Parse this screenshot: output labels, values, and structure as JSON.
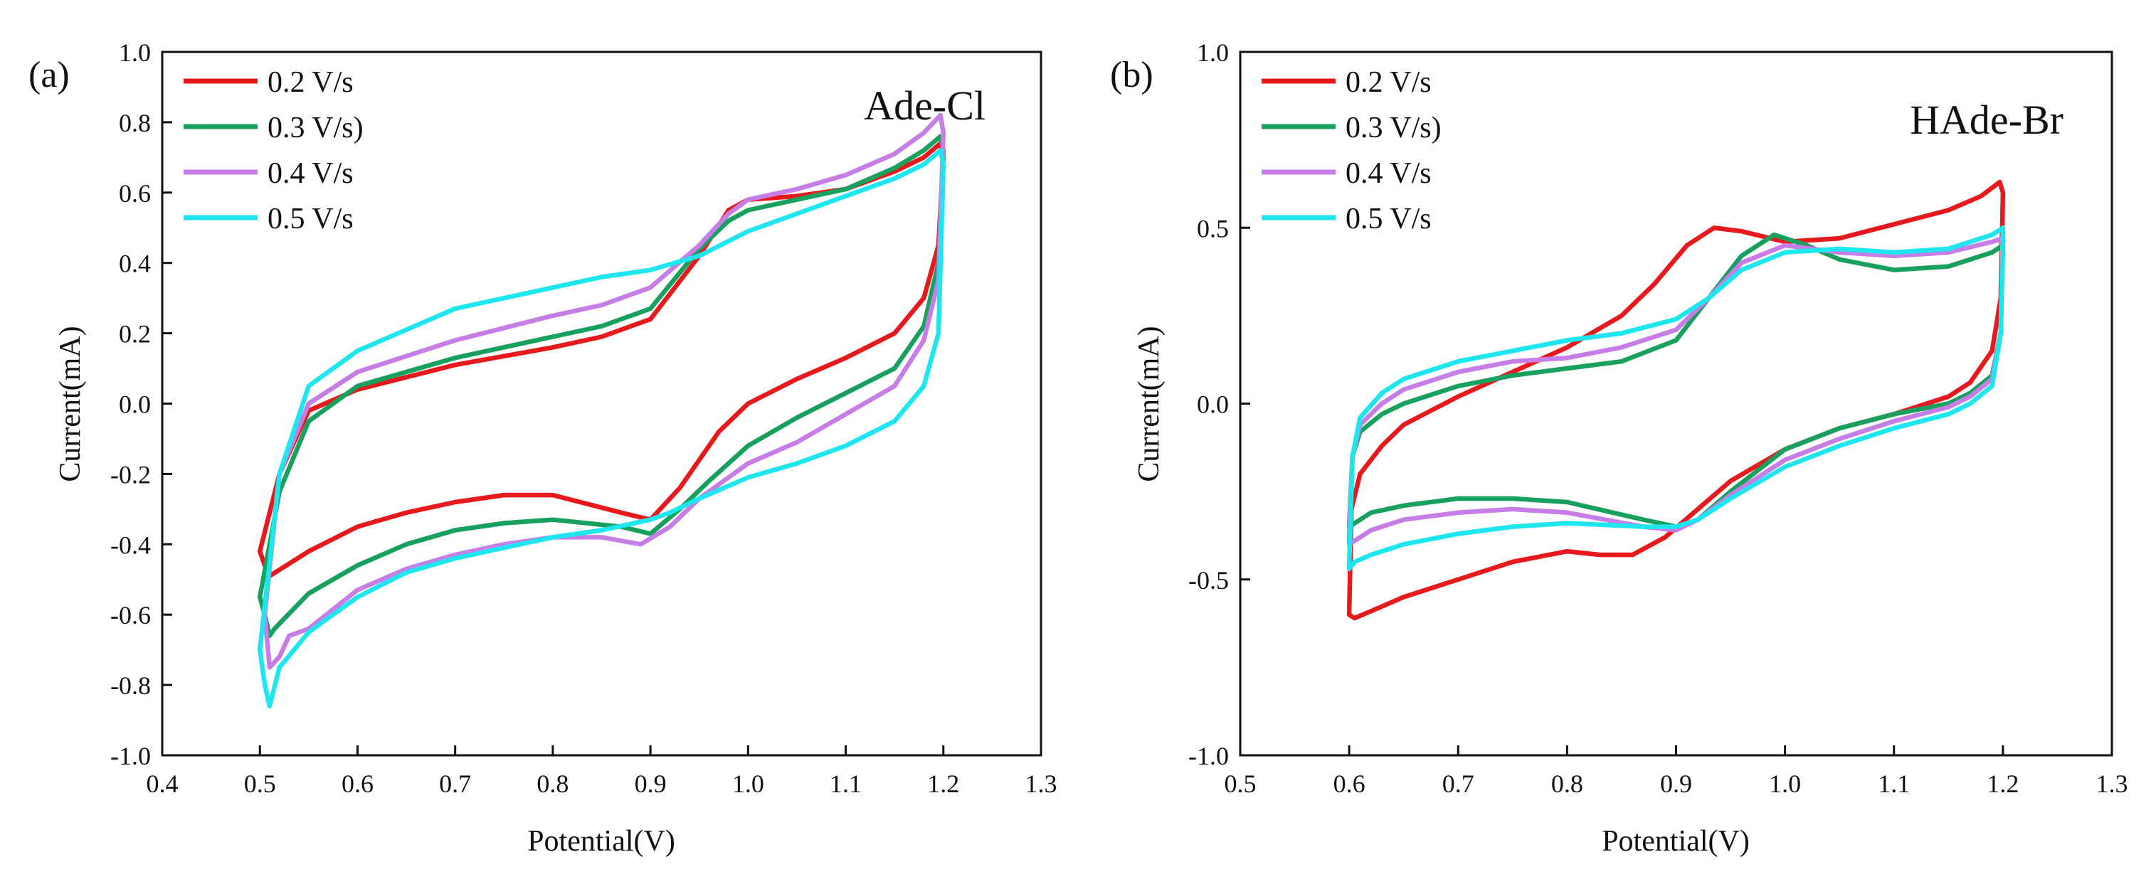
{
  "chart_data": [
    {
      "type": "line",
      "panel_label": "(a)",
      "annotation": "Ade-Cl",
      "xlabel": "Potential(V)",
      "ylabel": "Current(mA)",
      "xlim": [
        0.4,
        1.3
      ],
      "ylim": [
        -1.0,
        1.0
      ],
      "xticks": [
        0.4,
        0.5,
        0.6,
        0.7,
        0.8,
        0.9,
        1.0,
        1.1,
        1.2,
        1.3
      ],
      "xtick_labels": [
        "0.4",
        "0.5",
        "0.6",
        "0.7",
        "0.8",
        "0.9",
        "1.0",
        "1.1",
        "1.2",
        "1.3"
      ],
      "yticks": [
        -1.0,
        -0.8,
        -0.6,
        -0.4,
        -0.2,
        0.0,
        0.2,
        0.4,
        0.6,
        0.8,
        1.0
      ],
      "ytick_labels": [
        "-1.0",
        "-0.8",
        "-0.6",
        "-0.4",
        "-0.2",
        "0.0",
        "0.2",
        "0.4",
        "0.6",
        "0.8",
        "1.0"
      ],
      "legend_position": "top-left",
      "series": [
        {
          "name": "0.2 V/s",
          "color": "#e8191c",
          "x": [
            0.5,
            0.52,
            0.55,
            0.6,
            0.7,
            0.8,
            0.85,
            0.9,
            0.95,
            0.98,
            1.0,
            1.05,
            1.1,
            1.15,
            1.18,
            1.197,
            1.2,
            1.195,
            1.18,
            1.15,
            1.1,
            1.05,
            1.0,
            0.97,
            0.93,
            0.9,
            0.87,
            0.8,
            0.75,
            0.7,
            0.65,
            0.6,
            0.55,
            0.51,
            0.505,
            0.5
          ],
          "y": [
            -0.42,
            -0.2,
            -0.02,
            0.04,
            0.11,
            0.16,
            0.19,
            0.24,
            0.42,
            0.55,
            0.58,
            0.59,
            0.61,
            0.66,
            0.7,
            0.74,
            0.7,
            0.45,
            0.3,
            0.2,
            0.13,
            0.07,
            0.0,
            -0.08,
            -0.24,
            -0.33,
            -0.31,
            -0.26,
            -0.26,
            -0.28,
            -0.31,
            -0.35,
            -0.42,
            -0.49,
            -0.46,
            -0.42
          ]
        },
        {
          "name": "0.3 V/s)",
          "color": "#17a05e",
          "x": [
            0.5,
            0.52,
            0.55,
            0.6,
            0.7,
            0.8,
            0.85,
            0.9,
            0.95,
            0.98,
            1.0,
            1.05,
            1.1,
            1.15,
            1.18,
            1.197,
            1.2,
            1.195,
            1.18,
            1.15,
            1.1,
            1.05,
            1.0,
            0.96,
            0.93,
            0.9,
            0.87,
            0.8,
            0.75,
            0.7,
            0.65,
            0.6,
            0.55,
            0.515,
            0.51,
            0.505,
            0.5
          ],
          "y": [
            -0.55,
            -0.25,
            -0.05,
            0.05,
            0.13,
            0.19,
            0.22,
            0.27,
            0.44,
            0.52,
            0.55,
            0.58,
            0.61,
            0.67,
            0.72,
            0.76,
            0.72,
            0.4,
            0.22,
            0.1,
            0.03,
            -0.04,
            -0.12,
            -0.22,
            -0.3,
            -0.37,
            -0.35,
            -0.33,
            -0.34,
            -0.36,
            -0.4,
            -0.46,
            -0.54,
            -0.64,
            -0.66,
            -0.6,
            -0.55
          ]
        },
        {
          "name": "0.4 V/s",
          "color": "#c67ee6",
          "x": [
            0.505,
            0.52,
            0.55,
            0.6,
            0.7,
            0.8,
            0.85,
            0.9,
            0.95,
            0.98,
            1.0,
            1.05,
            1.1,
            1.15,
            1.18,
            1.197,
            1.2,
            1.195,
            1.18,
            1.15,
            1.1,
            1.05,
            1.0,
            0.95,
            0.92,
            0.89,
            0.85,
            0.8,
            0.75,
            0.7,
            0.65,
            0.6,
            0.55,
            0.53,
            0.52,
            0.51,
            0.505
          ],
          "y": [
            -0.6,
            -0.2,
            0.0,
            0.09,
            0.18,
            0.25,
            0.28,
            0.33,
            0.45,
            0.54,
            0.58,
            0.61,
            0.65,
            0.71,
            0.77,
            0.82,
            0.77,
            0.35,
            0.18,
            0.05,
            -0.03,
            -0.11,
            -0.17,
            -0.27,
            -0.35,
            -0.4,
            -0.38,
            -0.38,
            -0.4,
            -0.43,
            -0.47,
            -0.53,
            -0.64,
            -0.66,
            -0.72,
            -0.75,
            -0.6
          ]
        },
        {
          "name": "0.5 V/s",
          "color": "#1ee6ee",
          "x": [
            0.5,
            0.52,
            0.55,
            0.6,
            0.7,
            0.8,
            0.85,
            0.9,
            0.95,
            1.0,
            1.05,
            1.1,
            1.15,
            1.18,
            1.197,
            1.2,
            1.195,
            1.18,
            1.15,
            1.1,
            1.05,
            1.0,
            0.95,
            0.92,
            0.9,
            0.85,
            0.8,
            0.75,
            0.7,
            0.65,
            0.6,
            0.55,
            0.52,
            0.51,
            0.505,
            0.5
          ],
          "y": [
            -0.7,
            -0.2,
            0.05,
            0.15,
            0.27,
            0.33,
            0.36,
            0.38,
            0.42,
            0.49,
            0.54,
            0.59,
            0.64,
            0.68,
            0.72,
            0.68,
            0.2,
            0.05,
            -0.05,
            -0.12,
            -0.17,
            -0.21,
            -0.27,
            -0.31,
            -0.33,
            -0.36,
            -0.38,
            -0.41,
            -0.44,
            -0.48,
            -0.55,
            -0.65,
            -0.75,
            -0.86,
            -0.8,
            -0.7
          ]
        }
      ]
    },
    {
      "type": "line",
      "panel_label": "(b)",
      "annotation": "HAde-Br",
      "xlabel": "Potential(V)",
      "ylabel": "Current(mA)",
      "xlim": [
        0.5,
        1.3
      ],
      "ylim": [
        -1.0,
        1.0
      ],
      "xticks": [
        0.5,
        0.6,
        0.7,
        0.8,
        0.9,
        1.0,
        1.1,
        1.2,
        1.3
      ],
      "xtick_labels": [
        "0.5",
        "0.6",
        "0.7",
        "0.8",
        "0.9",
        "1.0",
        "1.1",
        "1.2",
        "1.3"
      ],
      "yticks": [
        -1.0,
        -0.5,
        0.0,
        0.5,
        1.0
      ],
      "ytick_labels": [
        "-1.0",
        "-0.5",
        "0.0",
        "0.5",
        "1.0"
      ],
      "legend_position": "top-left",
      "series": [
        {
          "name": "0.2 V/s",
          "color": "#e8191c",
          "x": [
            0.6,
            0.602,
            0.61,
            0.63,
            0.65,
            0.7,
            0.75,
            0.8,
            0.85,
            0.88,
            0.91,
            0.935,
            0.96,
            1.0,
            1.05,
            1.1,
            1.15,
            1.18,
            1.197,
            1.2,
            1.198,
            1.19,
            1.17,
            1.15,
            1.1,
            1.05,
            1.0,
            0.95,
            0.92,
            0.89,
            0.86,
            0.83,
            0.8,
            0.75,
            0.7,
            0.65,
            0.62,
            0.605,
            0.6
          ],
          "y": [
            -0.6,
            -0.3,
            -0.2,
            -0.12,
            -0.06,
            0.02,
            0.09,
            0.16,
            0.25,
            0.34,
            0.45,
            0.5,
            0.49,
            0.46,
            0.47,
            0.51,
            0.55,
            0.59,
            0.63,
            0.6,
            0.3,
            0.15,
            0.06,
            0.02,
            -0.03,
            -0.07,
            -0.13,
            -0.22,
            -0.3,
            -0.38,
            -0.43,
            -0.43,
            -0.42,
            -0.45,
            -0.5,
            -0.55,
            -0.59,
            -0.61,
            -0.6
          ]
        },
        {
          "name": "0.3 V/s)",
          "color": "#17a05e",
          "x": [
            0.6,
            0.603,
            0.61,
            0.63,
            0.65,
            0.7,
            0.75,
            0.8,
            0.85,
            0.9,
            0.93,
            0.96,
            0.99,
            1.02,
            1.05,
            1.1,
            1.15,
            1.19,
            1.2,
            1.198,
            1.19,
            1.17,
            1.15,
            1.1,
            1.05,
            1.0,
            0.95,
            0.92,
            0.9,
            0.87,
            0.8,
            0.75,
            0.7,
            0.65,
            0.62,
            0.605,
            0.6
          ],
          "y": [
            -0.35,
            -0.15,
            -0.08,
            -0.03,
            0.0,
            0.05,
            0.08,
            0.1,
            0.12,
            0.18,
            0.3,
            0.42,
            0.48,
            0.45,
            0.41,
            0.38,
            0.39,
            0.43,
            0.45,
            0.2,
            0.08,
            0.03,
            0.0,
            -0.03,
            -0.07,
            -0.13,
            -0.25,
            -0.33,
            -0.35,
            -0.33,
            -0.28,
            -0.27,
            -0.27,
            -0.29,
            -0.31,
            -0.34,
            -0.35
          ]
        },
        {
          "name": "0.4 V/s",
          "color": "#c67ee6",
          "x": [
            0.6,
            0.603,
            0.61,
            0.63,
            0.65,
            0.7,
            0.75,
            0.8,
            0.85,
            0.9,
            0.93,
            0.96,
            1.0,
            1.05,
            1.1,
            1.15,
            1.19,
            1.2,
            1.198,
            1.19,
            1.17,
            1.15,
            1.1,
            1.05,
            1.0,
            0.95,
            0.92,
            0.9,
            0.87,
            0.8,
            0.75,
            0.7,
            0.65,
            0.62,
            0.605,
            0.6
          ],
          "y": [
            -0.38,
            -0.15,
            -0.06,
            0.0,
            0.04,
            0.09,
            0.12,
            0.13,
            0.16,
            0.21,
            0.3,
            0.4,
            0.45,
            0.43,
            0.42,
            0.43,
            0.46,
            0.47,
            0.2,
            0.07,
            0.02,
            -0.01,
            -0.05,
            -0.1,
            -0.16,
            -0.26,
            -0.33,
            -0.36,
            -0.35,
            -0.31,
            -0.3,
            -0.31,
            -0.33,
            -0.36,
            -0.39,
            -0.4
          ]
        },
        {
          "name": "0.5 V/s",
          "color": "#1ee6ee",
          "x": [
            0.6,
            0.603,
            0.61,
            0.63,
            0.65,
            0.7,
            0.75,
            0.8,
            0.85,
            0.9,
            0.93,
            0.96,
            1.0,
            1.05,
            1.1,
            1.15,
            1.19,
            1.2,
            1.198,
            1.19,
            1.17,
            1.15,
            1.1,
            1.05,
            1.0,
            0.95,
            0.92,
            0.9,
            0.87,
            0.8,
            0.75,
            0.7,
            0.65,
            0.62,
            0.605,
            0.6
          ],
          "y": [
            -0.46,
            -0.15,
            -0.04,
            0.03,
            0.07,
            0.12,
            0.15,
            0.18,
            0.2,
            0.24,
            0.3,
            0.38,
            0.43,
            0.44,
            0.43,
            0.44,
            0.48,
            0.5,
            0.2,
            0.05,
            0.0,
            -0.03,
            -0.07,
            -0.12,
            -0.18,
            -0.27,
            -0.33,
            -0.35,
            -0.35,
            -0.34,
            -0.35,
            -0.37,
            -0.4,
            -0.43,
            -0.45,
            -0.47
          ]
        }
      ]
    }
  ]
}
